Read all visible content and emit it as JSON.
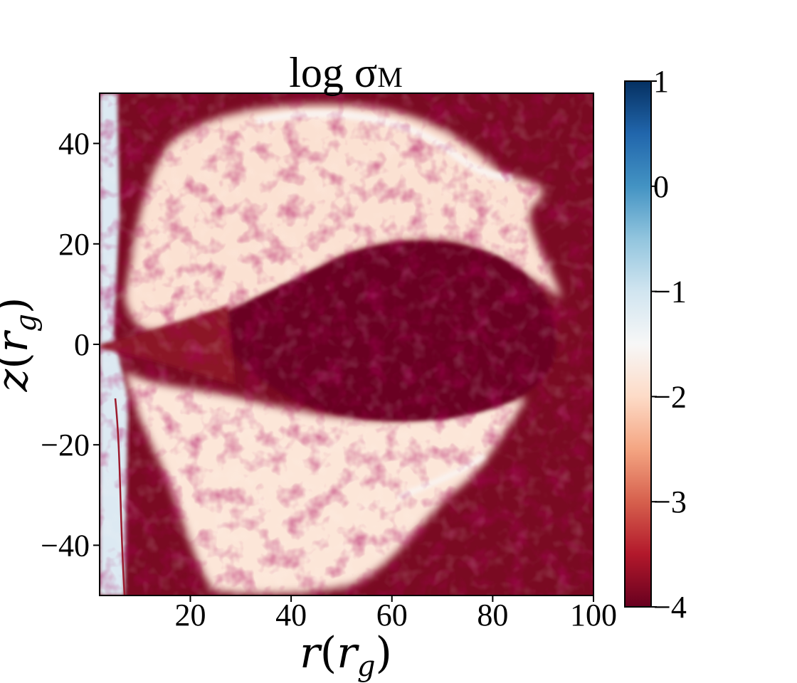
{
  "chart_data": {
    "type": "heatmap",
    "title": "log σ",
    "title_subscript": "M",
    "xlabel": {
      "var": "r",
      "unit_var": "r",
      "unit_sub": "g"
    },
    "ylabel": {
      "var": "z",
      "unit_var": "r",
      "unit_sub": "g"
    },
    "xlim": [
      2,
      100
    ],
    "ylim": [
      -50,
      50
    ],
    "x_ticks": [
      20,
      40,
      60,
      80,
      100
    ],
    "y_ticks": [
      40,
      20,
      0,
      -20,
      -40
    ],
    "x_tick_labels": [
      "20",
      "40",
      "60",
      "80",
      "100"
    ],
    "y_tick_labels": [
      "40",
      "20",
      "0",
      "−20",
      "−40"
    ],
    "colorbar": {
      "colormap": "RdBu",
      "range": [
        -4,
        1
      ],
      "ticks": [
        1,
        0,
        -1,
        -2,
        -3,
        -4
      ],
      "tick_labels": [
        "1",
        "0",
        "−1",
        "−2",
        "−3",
        "−4"
      ]
    },
    "colors": {
      "dark_red": "#67001f",
      "red": "#b2182b",
      "salmon": "#f4a582",
      "peach": "#fbe3d3",
      "white": "#f7f7f7",
      "light_blue": "#d1e5f0",
      "blue": "#4393c3",
      "dark_blue": "#053061"
    },
    "grid": false
  }
}
